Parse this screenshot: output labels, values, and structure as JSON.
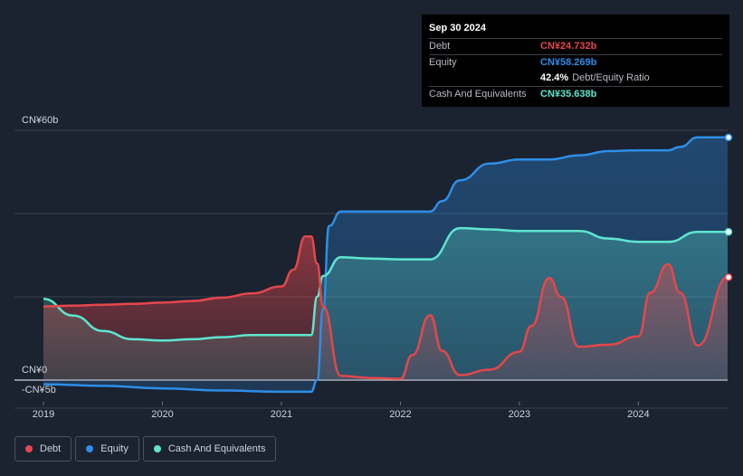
{
  "tooltip": {
    "date": "Sep 30 2024",
    "debt_label": "Debt",
    "debt_value": "CN¥24.732b",
    "equity_label": "Equity",
    "equity_value": "CN¥58.269b",
    "ratio_value": "42.4%",
    "ratio_label": "Debt/Equity Ratio",
    "cash_label": "Cash And Equivalents",
    "cash_value": "CN¥35.638b"
  },
  "legend": [
    {
      "label": "Debt",
      "color": "#e5474b"
    },
    {
      "label": "Equity",
      "color": "#2d8ee8"
    },
    {
      "label": "Cash And Equivalents",
      "color": "#5ee6d0"
    }
  ],
  "colors": {
    "debt": "#e5474b",
    "equity": "#2d8ee8",
    "cash": "#5ee6d0",
    "background": "#1b2230"
  },
  "chart_data": {
    "type": "area",
    "title": "",
    "xlabel": "",
    "ylabel": "",
    "ylim": [
      -5,
      60
    ],
    "xlim": [
      2019.0,
      2024.75
    ],
    "x_ticks": [
      2019,
      2020,
      2021,
      2022,
      2023,
      2024
    ],
    "x_tick_labels": [
      "2019",
      "2020",
      "2021",
      "2022",
      "2023",
      "2024"
    ],
    "y_tick_labels": [
      {
        "value": 60,
        "label": "CN¥60b"
      },
      {
        "value": 0,
        "label": "CN¥0"
      },
      {
        "value": -5,
        "label": "-CN¥5b"
      }
    ],
    "gridlines_at": [
      60,
      40,
      20,
      0
    ],
    "legend_position": "bottom-left",
    "series": [
      {
        "name": "Debt",
        "x": [
          2019.0,
          2019.25,
          2019.5,
          2019.75,
          2020.0,
          2020.25,
          2020.5,
          2020.75,
          2021.0,
          2021.1,
          2021.2,
          2021.25,
          2021.3,
          2021.35,
          2021.5,
          2021.75,
          2022.0,
          2022.1,
          2022.25,
          2022.35,
          2022.5,
          2022.75,
          2023.0,
          2023.1,
          2023.25,
          2023.35,
          2023.5,
          2023.75,
          2024.0,
          2024.1,
          2024.25,
          2024.35,
          2024.5,
          2024.75
        ],
        "y": [
          17.7,
          17.9,
          18.1,
          18.3,
          18.6,
          19.0,
          19.8,
          20.8,
          22.5,
          26.5,
          34.5,
          34.5,
          28.0,
          17.7,
          1.0,
          0.5,
          0.3,
          6.0,
          15.6,
          7.0,
          1.2,
          2.5,
          6.8,
          13.0,
          24.5,
          20.0,
          8.0,
          8.5,
          10.5,
          21.0,
          27.8,
          21.0,
          8.3,
          24.7
        ]
      },
      {
        "name": "Equity",
        "x": [
          2019.0,
          2019.5,
          2020.0,
          2020.5,
          2021.0,
          2021.25,
          2021.3,
          2021.35,
          2021.4,
          2021.5,
          2021.75,
          2022.0,
          2022.25,
          2022.35,
          2022.5,
          2022.75,
          2023.0,
          2023.25,
          2023.5,
          2023.75,
          2024.0,
          2024.25,
          2024.35,
          2024.5,
          2024.75
        ],
        "y": [
          -1.0,
          -1.4,
          -2.0,
          -2.5,
          -2.8,
          -2.8,
          0.0,
          17.0,
          37.0,
          40.5,
          40.5,
          40.5,
          40.5,
          43.0,
          48.0,
          52.0,
          53.0,
          53.0,
          54.0,
          55.0,
          55.2,
          55.2,
          56.0,
          58.3,
          58.3
        ]
      },
      {
        "name": "Cash And Equivalents",
        "x": [
          2019.0,
          2019.25,
          2019.5,
          2019.75,
          2020.0,
          2020.25,
          2020.5,
          2020.75,
          2021.0,
          2021.25,
          2021.3,
          2021.35,
          2021.5,
          2021.75,
          2022.0,
          2022.25,
          2022.5,
          2022.75,
          2023.0,
          2023.25,
          2023.5,
          2023.75,
          2024.0,
          2024.25,
          2024.5,
          2024.75
        ],
        "y": [
          19.5,
          15.5,
          11.8,
          9.8,
          9.5,
          9.8,
          10.3,
          10.8,
          10.8,
          10.8,
          20.0,
          25.0,
          29.5,
          29.2,
          29.0,
          29.0,
          36.5,
          36.2,
          35.8,
          35.8,
          35.8,
          34.0,
          33.2,
          33.2,
          35.6,
          35.6
        ]
      }
    ]
  }
}
